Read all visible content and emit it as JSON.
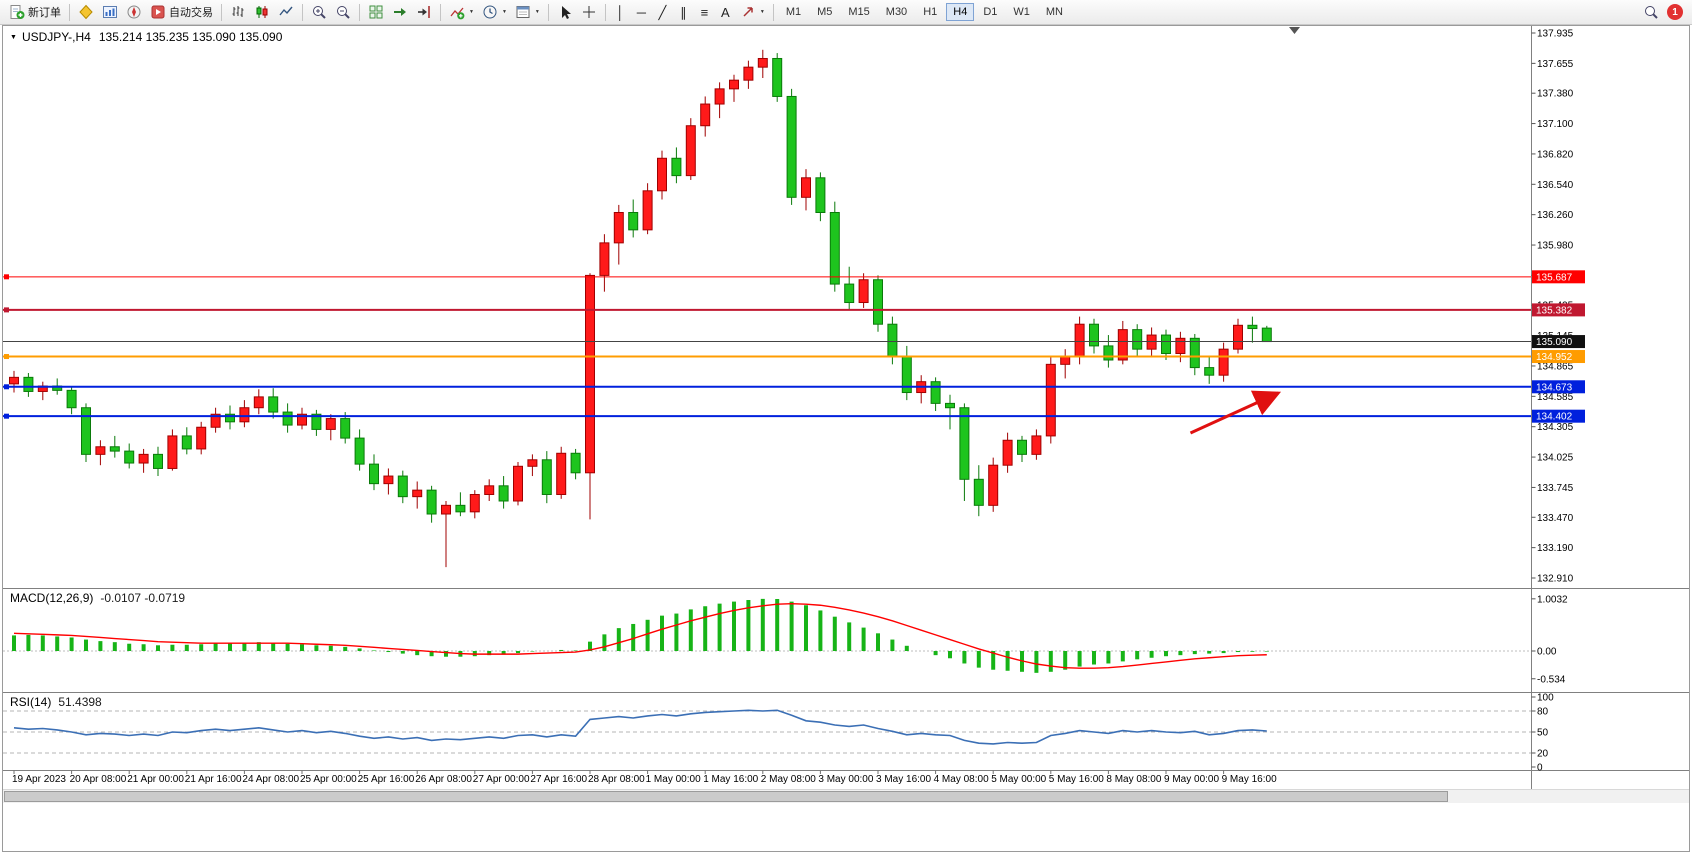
{
  "toolbar": {
    "new_order_label": "新订单",
    "autotrading_label": "自动交易",
    "timeframes": [
      "M1",
      "M5",
      "M15",
      "M30",
      "H1",
      "H4",
      "D1",
      "W1",
      "MN"
    ],
    "active_timeframe": "H4",
    "notification_count": "1"
  },
  "glyphs": {
    "caret": "▼",
    "collapse": "▼",
    "vline_tool": "│",
    "hline_tool": "─",
    "trendline_tool": "╱",
    "channel_tool": "∥",
    "fibonacci_tool": "≡",
    "text_tool": "A"
  },
  "chart_window": {
    "symbol_period": "USDJPY-,H4",
    "ohlc": "135.214 135.235 135.090 135.090"
  },
  "indicators": {
    "macd_label": "MACD(12,26,9)",
    "macd_values": "-0.0107 -0.0719",
    "rsi_label": "RSI(14)",
    "rsi_value": "51.4398"
  },
  "chart_data": {
    "type": "candlestick",
    "symbol": "USDJPY-",
    "timeframe": "H4",
    "current_bar": {
      "open": 135.214,
      "high": 135.235,
      "low": 135.09,
      "close": 135.09
    },
    "bull_color": "#ff1a1a",
    "bull_edge": "#a00000",
    "bear_color": "#1ec41e",
    "bear_edge": "#0a7a0a",
    "price_axis_ticks": [
      "137.935",
      "137.655",
      "137.380",
      "137.100",
      "136.820",
      "136.540",
      "136.260",
      "135.980",
      "135.700",
      "135.425",
      "135.145",
      "134.865",
      "134.585",
      "134.305",
      "134.025",
      "133.745",
      "133.470",
      "133.190",
      "132.910"
    ],
    "price_range": [
      132.91,
      137.935
    ],
    "time_labels": [
      "19 Apr 2023",
      "20 Apr 08:00",
      "21 Apr 00:00",
      "21 Apr 16:00",
      "24 Apr 08:00",
      "25 Apr 00:00",
      "25 Apr 16:00",
      "26 Apr 08:00",
      "27 Apr 00:00",
      "27 Apr 16:00",
      "28 Apr 08:00",
      "1 May 00:00",
      "1 May 16:00",
      "2 May 08:00",
      "3 May 00:00",
      "3 May 16:00",
      "4 May 08:00",
      "5 May 00:00",
      "5 May 16:00",
      "8 May 08:00",
      "9 May 00:00",
      "9 May 16:00"
    ],
    "bars_per_time_label": 4,
    "hlines": [
      {
        "name": "resistance-line-upper",
        "price": 135.687,
        "label": "135.687",
        "color": "#ff0000",
        "box": "#ff0000",
        "width": 1
      },
      {
        "name": "resistance-line-lower",
        "price": 135.382,
        "label": "135.382",
        "color": "#c01830",
        "box": "#c01830",
        "width": 2
      },
      {
        "name": "bid-price-line",
        "price": 135.09,
        "label": "135.090",
        "color": "#444444",
        "box": "#101010",
        "width": 1,
        "anchor": false
      },
      {
        "name": "pivot-line-orange",
        "price": 134.952,
        "label": "134.952",
        "color": "#ff9c00",
        "box": "#ff9c00",
        "width": 2
      },
      {
        "name": "support-line-upper",
        "price": 134.673,
        "label": "134.673",
        "color": "#0020dd",
        "box": "#0020dd",
        "width": 2
      },
      {
        "name": "support-line-lower",
        "price": 134.402,
        "label": "134.402",
        "color": "#0020dd",
        "box": "#0020dd",
        "width": 2
      }
    ],
    "candles": [
      [
        134.7,
        134.82,
        134.62,
        134.76
      ],
      [
        134.76,
        134.8,
        134.58,
        134.63
      ],
      [
        134.63,
        134.72,
        134.55,
        134.68
      ],
      [
        134.68,
        134.75,
        134.6,
        134.64
      ],
      [
        134.64,
        134.68,
        134.42,
        134.48
      ],
      [
        134.48,
        134.52,
        133.98,
        134.05
      ],
      [
        134.05,
        134.18,
        133.95,
        134.12
      ],
      [
        134.12,
        134.22,
        134.02,
        134.08
      ],
      [
        134.08,
        134.15,
        133.92,
        133.97
      ],
      [
        133.97,
        134.1,
        133.88,
        134.05
      ],
      [
        134.05,
        134.12,
        133.85,
        133.92
      ],
      [
        133.92,
        134.28,
        133.9,
        134.22
      ],
      [
        134.22,
        134.3,
        134.05,
        134.1
      ],
      [
        134.1,
        134.35,
        134.05,
        134.3
      ],
      [
        134.3,
        134.48,
        134.25,
        134.42
      ],
      [
        134.42,
        134.5,
        134.28,
        134.35
      ],
      [
        134.35,
        134.55,
        134.3,
        134.48
      ],
      [
        134.48,
        134.65,
        134.42,
        134.58
      ],
      [
        134.58,
        134.66,
        134.38,
        134.44
      ],
      [
        134.44,
        134.52,
        134.25,
        134.32
      ],
      [
        134.32,
        134.48,
        134.28,
        134.42
      ],
      [
        134.42,
        134.46,
        134.22,
        134.28
      ],
      [
        134.28,
        134.42,
        134.18,
        134.38
      ],
      [
        134.38,
        134.44,
        134.15,
        134.2
      ],
      [
        134.2,
        134.28,
        133.9,
        133.96
      ],
      [
        133.96,
        134.05,
        133.72,
        133.78
      ],
      [
        133.78,
        133.92,
        133.68,
        133.85
      ],
      [
        133.85,
        133.9,
        133.6,
        133.66
      ],
      [
        133.66,
        133.8,
        133.55,
        133.72
      ],
      [
        133.72,
        133.76,
        133.42,
        133.5
      ],
      [
        133.5,
        133.62,
        133.01,
        133.58
      ],
      [
        133.58,
        133.7,
        133.48,
        133.52
      ],
      [
        133.52,
        133.72,
        133.46,
        133.68
      ],
      [
        133.68,
        133.82,
        133.62,
        133.76
      ],
      [
        133.76,
        133.85,
        133.55,
        133.62
      ],
      [
        133.62,
        133.98,
        133.58,
        133.94
      ],
      [
        133.94,
        134.05,
        133.85,
        134.0
      ],
      [
        134.0,
        134.08,
        133.6,
        133.68
      ],
      [
        133.68,
        134.12,
        133.64,
        134.06
      ],
      [
        134.06,
        134.1,
        133.82,
        133.88
      ],
      [
        133.88,
        135.72,
        133.45,
        135.7
      ],
      [
        135.7,
        136.08,
        135.55,
        136.0
      ],
      [
        136.0,
        136.35,
        135.8,
        136.28
      ],
      [
        136.28,
        136.4,
        136.05,
        136.12
      ],
      [
        136.12,
        136.55,
        136.08,
        136.48
      ],
      [
        136.48,
        136.85,
        136.4,
        136.78
      ],
      [
        136.78,
        136.88,
        136.55,
        136.62
      ],
      [
        136.62,
        137.15,
        136.58,
        137.08
      ],
      [
        137.08,
        137.35,
        136.98,
        137.28
      ],
      [
        137.28,
        137.48,
        137.15,
        137.42
      ],
      [
        137.42,
        137.55,
        137.3,
        137.5
      ],
      [
        137.5,
        137.68,
        137.42,
        137.62
      ],
      [
        137.62,
        137.78,
        137.52,
        137.7
      ],
      [
        137.7,
        137.75,
        137.3,
        137.35
      ],
      [
        137.35,
        137.42,
        136.35,
        136.42
      ],
      [
        136.42,
        136.68,
        136.3,
        136.6
      ],
      [
        136.6,
        136.65,
        136.2,
        136.28
      ],
      [
        136.28,
        136.38,
        135.55,
        135.62
      ],
      [
        135.62,
        135.78,
        135.38,
        135.45
      ],
      [
        135.45,
        135.72,
        135.4,
        135.66
      ],
      [
        135.66,
        135.7,
        135.18,
        135.25
      ],
      [
        135.25,
        135.32,
        134.88,
        134.95
      ],
      [
        134.95,
        135.05,
        134.55,
        134.62
      ],
      [
        134.62,
        134.78,
        134.52,
        134.72
      ],
      [
        134.72,
        134.76,
        134.45,
        134.52
      ],
      [
        134.52,
        134.6,
        134.28,
        134.48
      ],
      [
        134.48,
        134.52,
        133.62,
        133.82
      ],
      [
        133.82,
        133.95,
        133.48,
        133.58
      ],
      [
        133.58,
        134.02,
        133.52,
        133.95
      ],
      [
        133.95,
        134.25,
        133.88,
        134.18
      ],
      [
        134.18,
        134.22,
        133.98,
        134.05
      ],
      [
        134.05,
        134.28,
        134.0,
        134.22
      ],
      [
        134.22,
        134.95,
        134.15,
        134.88
      ],
      [
        134.88,
        135.02,
        134.75,
        134.95
      ],
      [
        134.95,
        135.32,
        134.88,
        135.25
      ],
      [
        135.25,
        135.3,
        134.98,
        135.05
      ],
      [
        135.05,
        135.15,
        134.85,
        134.92
      ],
      [
        134.92,
        135.28,
        134.88,
        135.2
      ],
      [
        135.2,
        135.25,
        134.95,
        135.02
      ],
      [
        135.02,
        135.22,
        134.95,
        135.15
      ],
      [
        135.15,
        135.2,
        134.92,
        134.98
      ],
      [
        134.98,
        135.18,
        134.9,
        135.12
      ],
      [
        135.12,
        135.16,
        134.78,
        134.85
      ],
      [
        134.85,
        134.95,
        134.7,
        134.78
      ],
      [
        134.78,
        135.08,
        134.72,
        135.02
      ],
      [
        135.02,
        135.3,
        134.98,
        135.24
      ],
      [
        135.24,
        135.32,
        135.08,
        135.21
      ],
      [
        135.214,
        135.235,
        135.09,
        135.09
      ]
    ],
    "macd": {
      "label": "MACD(12,26,9)",
      "current": "-0.0107 -0.0719",
      "axis": [
        "1.0032",
        "0.00",
        "-0.534"
      ],
      "hist_color": "#17b417",
      "signal_color": "#ff0000",
      "values": [
        0.3,
        0.31,
        0.3,
        0.28,
        0.26,
        0.22,
        0.19,
        0.17,
        0.14,
        0.13,
        0.11,
        0.12,
        0.12,
        0.13,
        0.15,
        0.15,
        0.16,
        0.17,
        0.16,
        0.14,
        0.13,
        0.11,
        0.1,
        0.08,
        0.05,
        0.01,
        -0.02,
        -0.05,
        -0.08,
        -0.1,
        -0.11,
        -0.11,
        -0.1,
        -0.08,
        -0.07,
        -0.04,
        -0.01,
        0.0,
        0.02,
        0.01,
        0.18,
        0.32,
        0.44,
        0.52,
        0.6,
        0.68,
        0.72,
        0.8,
        0.86,
        0.91,
        0.95,
        0.98,
        1.0032,
        1.0,
        0.95,
        0.88,
        0.78,
        0.66,
        0.55,
        0.45,
        0.34,
        0.22,
        0.1,
        0.0,
        -0.08,
        -0.14,
        -0.24,
        -0.32,
        -0.36,
        -0.38,
        -0.4,
        -0.42,
        -0.4,
        -0.36,
        -0.3,
        -0.26,
        -0.24,
        -0.2,
        -0.16,
        -0.13,
        -0.1,
        -0.08,
        -0.06,
        -0.05,
        -0.04,
        -0.02,
        -0.015,
        -0.0107
      ],
      "signal": [
        0.34,
        0.33,
        0.32,
        0.31,
        0.3,
        0.28,
        0.26,
        0.24,
        0.22,
        0.2,
        0.18,
        0.17,
        0.16,
        0.15,
        0.15,
        0.15,
        0.15,
        0.15,
        0.15,
        0.15,
        0.14,
        0.13,
        0.12,
        0.11,
        0.09,
        0.07,
        0.05,
        0.03,
        0.01,
        -0.01,
        -0.03,
        -0.05,
        -0.06,
        -0.06,
        -0.06,
        -0.06,
        -0.05,
        -0.04,
        -0.03,
        -0.02,
        0.02,
        0.08,
        0.16,
        0.24,
        0.33,
        0.42,
        0.5,
        0.58,
        0.65,
        0.72,
        0.78,
        0.83,
        0.87,
        0.9,
        0.91,
        0.9,
        0.88,
        0.84,
        0.79,
        0.73,
        0.66,
        0.58,
        0.49,
        0.4,
        0.31,
        0.22,
        0.13,
        0.04,
        -0.04,
        -0.12,
        -0.19,
        -0.25,
        -0.29,
        -0.32,
        -0.33,
        -0.33,
        -0.32,
        -0.3,
        -0.27,
        -0.24,
        -0.21,
        -0.18,
        -0.15,
        -0.13,
        -0.11,
        -0.09,
        -0.08,
        -0.0719
      ]
    },
    "rsi": {
      "label": "RSI(14)",
      "current": "51.4398",
      "axis": [
        "100",
        "80",
        "50",
        "20",
        "0"
      ],
      "levels": [
        80,
        50,
        20
      ],
      "color": "#3b6fb5",
      "values": [
        56,
        54,
        55,
        53,
        50,
        46,
        48,
        47,
        45,
        47,
        45,
        50,
        49,
        52,
        54,
        52,
        54,
        56,
        53,
        50,
        52,
        49,
        51,
        48,
        44,
        41,
        43,
        40,
        42,
        38,
        40,
        39,
        41,
        43,
        41,
        45,
        46,
        43,
        46,
        44,
        68,
        70,
        72,
        70,
        73,
        75,
        73,
        76,
        78,
        79,
        80,
        81,
        80,
        81,
        74,
        66,
        64,
        60,
        58,
        60,
        55,
        51,
        46,
        48,
        46,
        45,
        38,
        34,
        33,
        35,
        34,
        35,
        45,
        48,
        52,
        50,
        48,
        52,
        50,
        52,
        50,
        49,
        51,
        46,
        48,
        52,
        53,
        51.44
      ]
    },
    "arrow_annotation": {
      "color": "#e01010",
      "x1_bar": 81.7,
      "y1_price": 134.247,
      "x2_bar": 87.8,
      "y2_price": 134.616
    }
  }
}
